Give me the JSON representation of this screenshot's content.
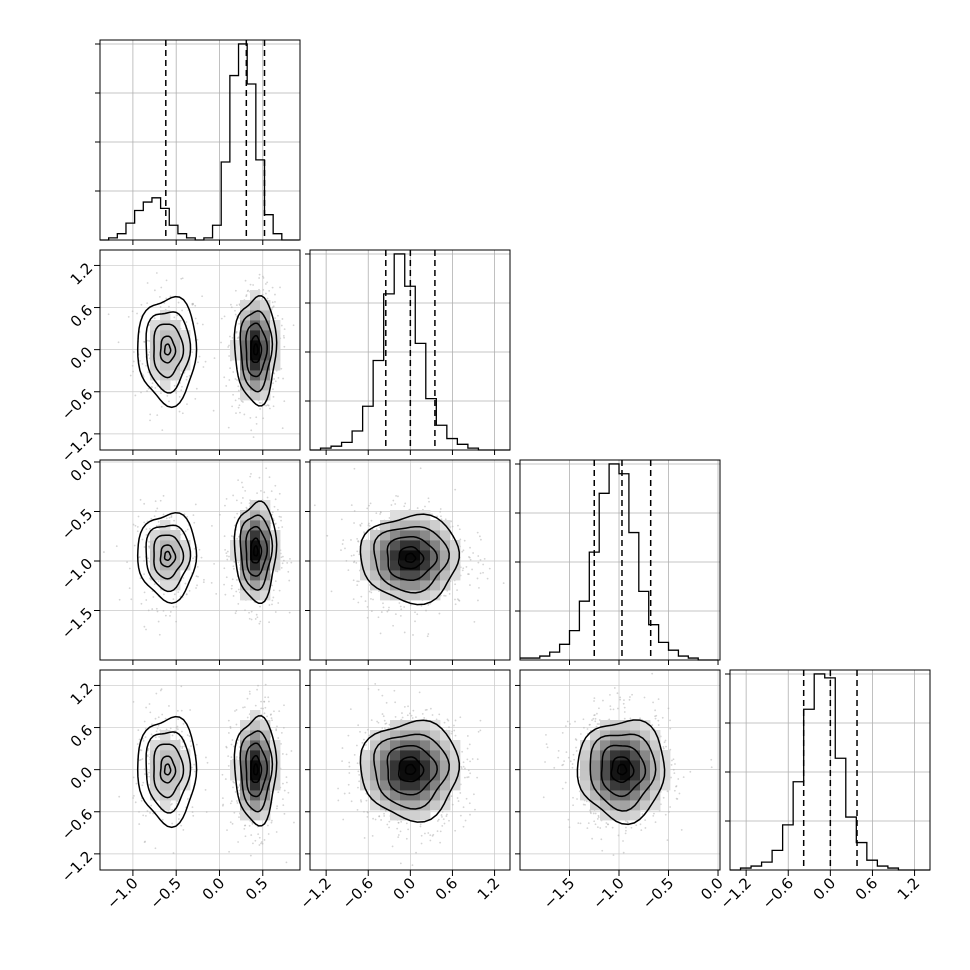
{
  "chart_data": {
    "type": "corner",
    "parameters": 4,
    "grid": true,
    "quantile_lines": "dashed",
    "contour_colors": "#000000",
    "scatter_color": "#b0b0b0",
    "axis_ticks": [
      {
        "values": [
          -1.0,
          -0.5,
          0.0,
          0.5
        ],
        "labels": [
          "−1.0",
          "−0.5",
          "0.0",
          "0.5"
        ]
      },
      {
        "values": [
          -1.2,
          -0.6,
          0.0,
          0.6,
          1.2
        ],
        "labels": [
          "−1.2",
          "−0.6",
          "0.0",
          "0.6",
          "1.2"
        ]
      },
      {
        "values": [
          -1.5,
          -1.0,
          -0.5,
          0.0
        ],
        "labels": [
          "−1.5",
          "−1.0",
          "−0.5",
          "0.0"
        ]
      },
      {
        "values": [
          -1.2,
          -0.6,
          0.0,
          0.6,
          1.2
        ],
        "labels": [
          "−1.2",
          "−0.6",
          "0.0",
          "0.6",
          "1.2"
        ]
      }
    ],
    "axis_ranges": [
      [
        -1.38,
        0.93
      ],
      [
        -1.43,
        1.42
      ],
      [
        -2.0,
        0.02
      ],
      [
        -1.43,
        1.42
      ]
    ],
    "histograms": [
      {
        "quantiles": [
          -0.62,
          0.31,
          0.52
        ],
        "bin_edges_start": -1.38,
        "bin_width": 0.1,
        "counts": [
          0,
          1,
          3,
          8,
          14,
          18,
          20,
          15,
          7,
          3,
          1,
          0,
          1,
          7,
          37,
          78,
          93,
          74,
          38,
          12,
          3,
          0,
          0
        ]
      },
      {
        "quantiles": [
          -0.35,
          0.0,
          0.35
        ],
        "bin_edges_start": -1.43,
        "bin_width": 0.15,
        "counts": [
          0,
          1,
          2,
          4,
          10,
          23,
          47,
          82,
          103,
          86,
          56,
          27,
          13,
          6,
          3,
          1,
          0,
          0,
          0
        ]
      },
      {
        "quantiles": [
          -1.25,
          -0.97,
          -0.68
        ],
        "bin_edges_start": -2.0,
        "bin_width": 0.1,
        "counts": [
          1,
          1,
          2,
          4,
          8,
          15,
          30,
          55,
          85,
          100,
          95,
          65,
          35,
          18,
          9,
          5,
          2,
          1,
          0,
          0
        ]
      },
      {
        "quantiles": [
          -0.38,
          0.0,
          0.38
        ],
        "bin_edges_start": -1.43,
        "bin_width": 0.15,
        "counts": [
          0,
          1,
          2,
          4,
          10,
          23,
          45,
          82,
          100,
          98,
          57,
          27,
          14,
          5,
          2,
          1,
          0,
          0,
          0
        ]
      }
    ],
    "pairs": [
      {
        "row": 1,
        "col": 0,
        "modes": [
          {
            "x": -0.6,
            "y": 0.0,
            "sx": 0.17,
            "sy": 0.38,
            "w": 0.3
          },
          {
            "x": 0.42,
            "y": 0.0,
            "sx": 0.12,
            "sy": 0.38,
            "w": 0.7
          }
        ]
      },
      {
        "row": 2,
        "col": 0,
        "modes": [
          {
            "x": -0.6,
            "y": -0.95,
            "sx": 0.17,
            "sy": 0.22,
            "w": 0.3
          },
          {
            "x": 0.42,
            "y": -0.9,
            "sx": 0.12,
            "sy": 0.25,
            "w": 0.7
          }
        ]
      },
      {
        "row": 2,
        "col": 1,
        "modes": [
          {
            "x": 0.0,
            "y": -0.97,
            "sx": 0.35,
            "sy": 0.22,
            "w": 1.0
          }
        ]
      },
      {
        "row": 3,
        "col": 0,
        "modes": [
          {
            "x": -0.6,
            "y": 0.0,
            "sx": 0.17,
            "sy": 0.38,
            "w": 0.3
          },
          {
            "x": 0.42,
            "y": 0.0,
            "sx": 0.12,
            "sy": 0.38,
            "w": 0.7
          }
        ]
      },
      {
        "row": 3,
        "col": 1,
        "modes": [
          {
            "x": 0.0,
            "y": 0.0,
            "sx": 0.35,
            "sy": 0.35,
            "w": 1.0
          }
        ]
      },
      {
        "row": 3,
        "col": 2,
        "modes": [
          {
            "x": -0.97,
            "y": 0.0,
            "sx": 0.22,
            "sy": 0.36,
            "w": 1.0
          }
        ]
      }
    ]
  }
}
